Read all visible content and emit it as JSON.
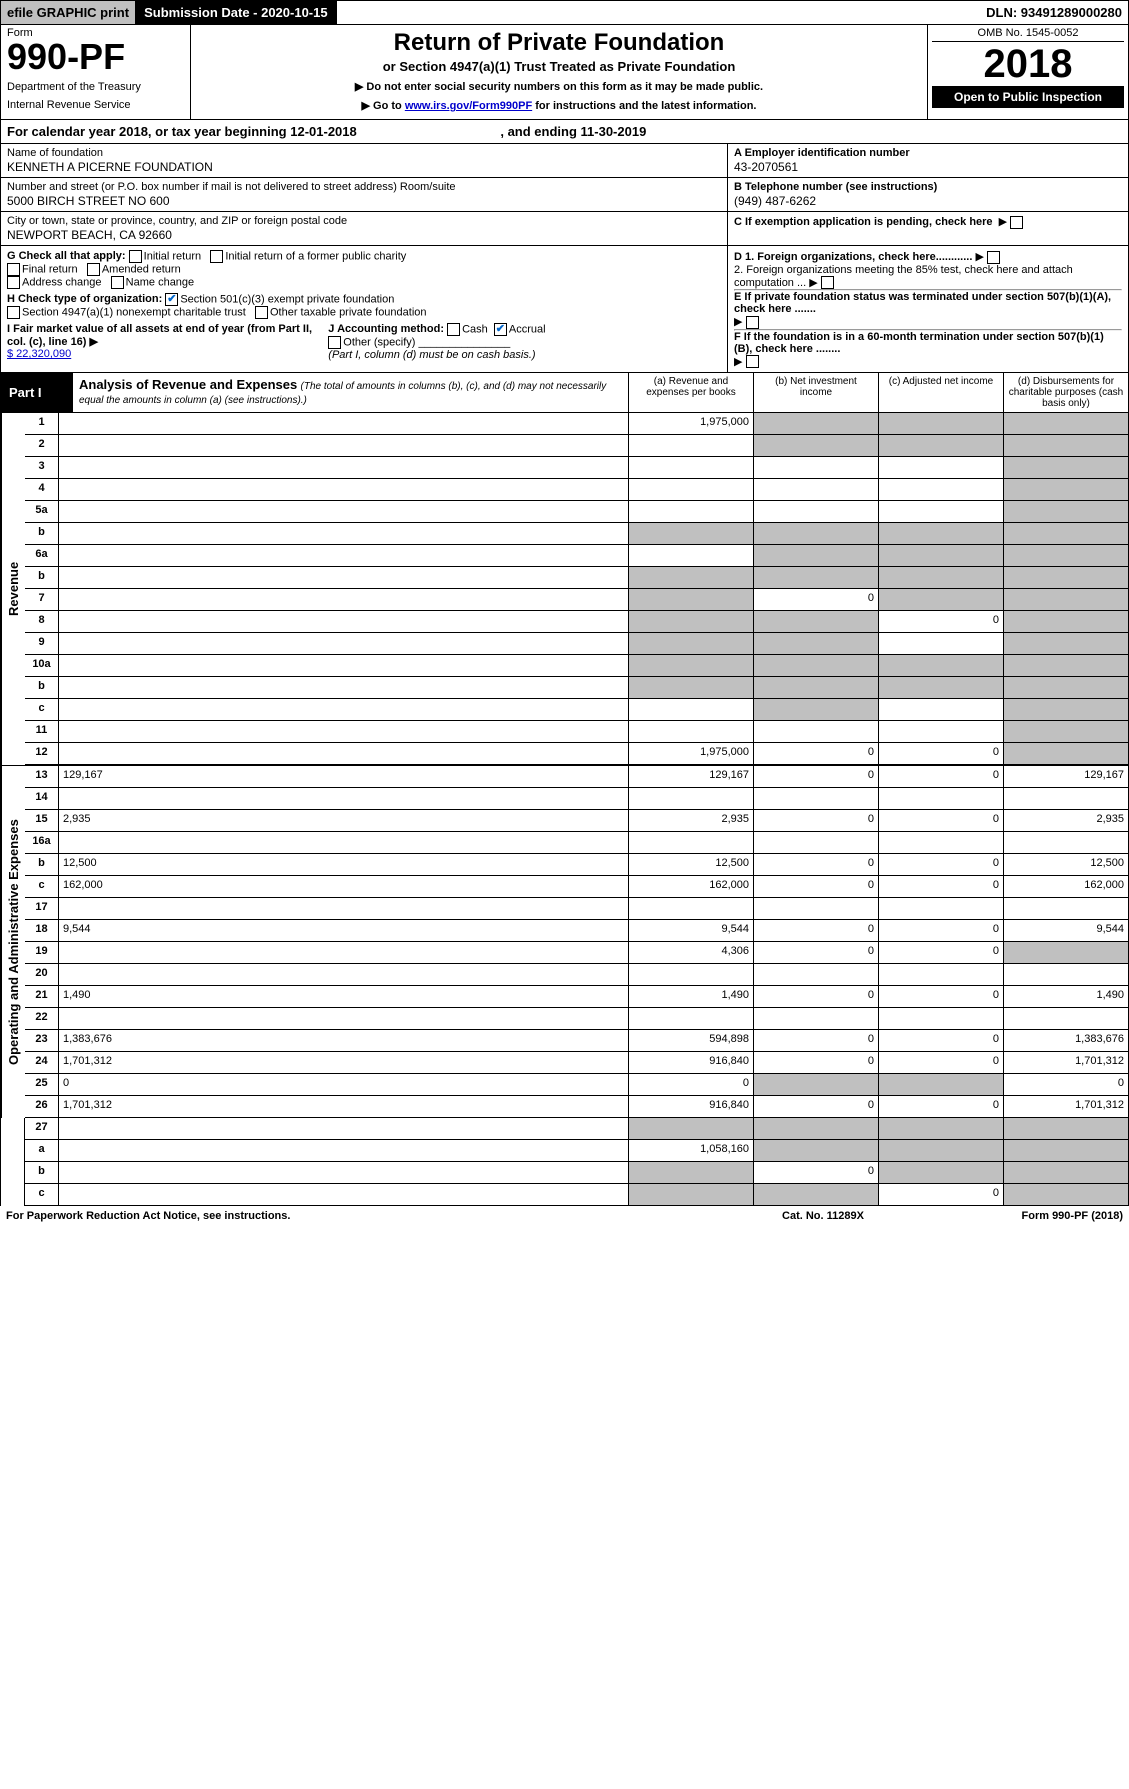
{
  "topbar": {
    "efile": "efile GRAPHIC print",
    "submission": "Submission Date - 2020-10-15",
    "dln": "DLN: 93491289000280"
  },
  "header": {
    "form_label": "Form",
    "form_number": "990-PF",
    "dept_line1": "Department of the Treasury",
    "dept_line2": "Internal Revenue Service",
    "title": "Return of Private Foundation",
    "subtitle": "or Section 4947(a)(1) Trust Treated as Private Foundation",
    "line1": "▶ Do not enter social security numbers on this form as it may be made public.",
    "line2_pre": "▶ Go to ",
    "line2_link": "www.irs.gov/Form990PF",
    "line2_post": " for instructions and the latest information.",
    "omb": "OMB No. 1545-0052",
    "year": "2018",
    "open": "Open to Public Inspection"
  },
  "cal_year": {
    "text_pre": "For calendar year 2018, or tax year beginning ",
    "begin": "12-01-2018",
    "text_mid": " , and ending ",
    "end": "11-30-2019"
  },
  "info": {
    "name_label": "Name of foundation",
    "name": "KENNETH A PICERNE FOUNDATION",
    "addr_label": "Number and street (or P.O. box number if mail is not delivered to street address)     Room/suite",
    "addr": "5000 BIRCH STREET NO 600",
    "city_label": "City or town, state or province, country, and ZIP or foreign postal code",
    "city": "NEWPORT BEACH, CA  92660",
    "a_label": "A Employer identification number",
    "a_val": "43-2070561",
    "b_label": "B Telephone number (see instructions)",
    "b_val": "(949) 487-6262",
    "c_label": "C If exemption application is pending, check here"
  },
  "checks": {
    "g_label": "G Check all that apply:",
    "g_opts": [
      "Initial return",
      "Initial return of a former public charity",
      "Final return",
      "Amended return",
      "Address change",
      "Name change"
    ],
    "h_label": "H Check type of organization:",
    "h1": "Section 501(c)(3) exempt private foundation",
    "h2": "Section 4947(a)(1) nonexempt charitable trust",
    "h3": "Other taxable private foundation",
    "i_label": "I Fair market value of all assets at end of year (from Part II, col. (c), line 16) ▶",
    "i_val": "$  22,320,090",
    "j_label": "J Accounting method:",
    "j_cash": "Cash",
    "j_accrual": "Accrual",
    "j_other": "Other (specify)",
    "j_note": "(Part I, column (d) must be on cash basis.)",
    "d1": "D 1. Foreign organizations, check here............",
    "d2": "2. Foreign organizations meeting the 85% test, check here and attach computation ...",
    "e": "E  If private foundation status was terminated under section 507(b)(1)(A), check here .......",
    "f": "F  If the foundation is in a 60-month termination under section 507(b)(1)(B), check here ........"
  },
  "part1": {
    "label": "Part I",
    "title": "Analysis of Revenue and Expenses",
    "note": "(The total of amounts in columns (b), (c), and (d) may not necessarily equal the amounts in column (a) (see instructions).)",
    "col_a": "(a) Revenue and expenses per books",
    "col_b": "(b) Net investment income",
    "col_c": "(c) Adjusted net income",
    "col_d": "(d) Disbursements for charitable purposes (cash basis only)",
    "revenue_label": "Revenue",
    "opex_label": "Operating and Administrative Expenses"
  },
  "lines": [
    {
      "n": "1",
      "d": "",
      "a": "1,975,000",
      "b": "",
      "c": "",
      "gb": true,
      "gc": true,
      "gd": true
    },
    {
      "n": "2",
      "d": "",
      "a": "",
      "b": "",
      "c": "",
      "gb": true,
      "gc": true,
      "gd": true,
      "na": true
    },
    {
      "n": "3",
      "d": "",
      "a": "",
      "b": "",
      "c": "",
      "gd": true
    },
    {
      "n": "4",
      "d": "",
      "a": "",
      "b": "",
      "c": "",
      "gd": true
    },
    {
      "n": "5a",
      "d": "",
      "a": "",
      "b": "",
      "c": "",
      "gd": true
    },
    {
      "n": "b",
      "d": "",
      "a": "",
      "b": "",
      "c": "",
      "ga": true,
      "gb": true,
      "gc": true,
      "gd": true
    },
    {
      "n": "6a",
      "d": "",
      "a": "",
      "b": "",
      "c": "",
      "gb": true,
      "gc": true,
      "gd": true
    },
    {
      "n": "b",
      "d": "",
      "a": "",
      "b": "",
      "c": "",
      "ga": true,
      "gb": true,
      "gc": true,
      "gd": true
    },
    {
      "n": "7",
      "d": "",
      "a": "",
      "b": "0",
      "c": "",
      "ga": true,
      "gc": true,
      "gd": true
    },
    {
      "n": "8",
      "d": "",
      "a": "",
      "b": "",
      "c": "0",
      "ga": true,
      "gb": true,
      "gd": true
    },
    {
      "n": "9",
      "d": "",
      "a": "",
      "b": "",
      "c": "",
      "ga": true,
      "gb": true,
      "gd": true
    },
    {
      "n": "10a",
      "d": "",
      "a": "",
      "b": "",
      "c": "",
      "ga": true,
      "gb": true,
      "gc": true,
      "gd": true
    },
    {
      "n": "b",
      "d": "",
      "a": "",
      "b": "",
      "c": "",
      "ga": true,
      "gb": true,
      "gc": true,
      "gd": true
    },
    {
      "n": "c",
      "d": "",
      "a": "",
      "b": "",
      "c": "",
      "gb": true,
      "gd": true
    },
    {
      "n": "11",
      "d": "",
      "a": "",
      "b": "",
      "c": "",
      "gd": true
    },
    {
      "n": "12",
      "d": "",
      "a": "1,975,000",
      "b": "0",
      "c": "0",
      "gd": true
    }
  ],
  "exp_lines": [
    {
      "n": "13",
      "d": "129,167",
      "a": "129,167",
      "b": "0",
      "c": "0"
    },
    {
      "n": "14",
      "d": "",
      "a": "",
      "b": "",
      "c": ""
    },
    {
      "n": "15",
      "d": "2,935",
      "a": "2,935",
      "b": "0",
      "c": "0"
    },
    {
      "n": "16a",
      "d": "",
      "a": "",
      "b": "",
      "c": ""
    },
    {
      "n": "b",
      "d": "12,500",
      "a": "12,500",
      "b": "0",
      "c": "0"
    },
    {
      "n": "c",
      "d": "162,000",
      "a": "162,000",
      "b": "0",
      "c": "0"
    },
    {
      "n": "17",
      "d": "",
      "a": "",
      "b": "",
      "c": ""
    },
    {
      "n": "18",
      "d": "9,544",
      "a": "9,544",
      "b": "0",
      "c": "0"
    },
    {
      "n": "19",
      "d": "",
      "a": "4,306",
      "b": "0",
      "c": "0",
      "gd": true
    },
    {
      "n": "20",
      "d": "",
      "a": "",
      "b": "",
      "c": ""
    },
    {
      "n": "21",
      "d": "1,490",
      "a": "1,490",
      "b": "0",
      "c": "0"
    },
    {
      "n": "22",
      "d": "",
      "a": "",
      "b": "",
      "c": ""
    },
    {
      "n": "23",
      "d": "1,383,676",
      "a": "594,898",
      "b": "0",
      "c": "0"
    },
    {
      "n": "24",
      "d": "1,701,312",
      "a": "916,840",
      "b": "0",
      "c": "0"
    },
    {
      "n": "25",
      "d": "0",
      "a": "0",
      "b": "",
      "c": "",
      "gb": true,
      "gc": true
    },
    {
      "n": "26",
      "d": "1,701,312",
      "a": "916,840",
      "b": "0",
      "c": "0"
    }
  ],
  "bottom_lines": [
    {
      "n": "27",
      "d": "",
      "a": "",
      "b": "",
      "c": "",
      "ga": true,
      "gb": true,
      "gc": true,
      "gd": true
    },
    {
      "n": "a",
      "d": "",
      "a": "1,058,160",
      "b": "",
      "c": "",
      "gb": true,
      "gc": true,
      "gd": true
    },
    {
      "n": "b",
      "d": "",
      "a": "",
      "b": "0",
      "c": "",
      "ga": true,
      "gc": true,
      "gd": true
    },
    {
      "n": "c",
      "d": "",
      "a": "",
      "b": "",
      "c": "0",
      "ga": true,
      "gb": true,
      "gd": true
    }
  ],
  "footer": {
    "left": "For Paperwork Reduction Act Notice, see instructions.",
    "mid": "Cat. No. 11289X",
    "right": "Form 990-PF (2018)"
  },
  "colors": {
    "black": "#000000",
    "grey": "#c0c0c0",
    "blue": "#0066cc",
    "link": "#0000cc"
  }
}
